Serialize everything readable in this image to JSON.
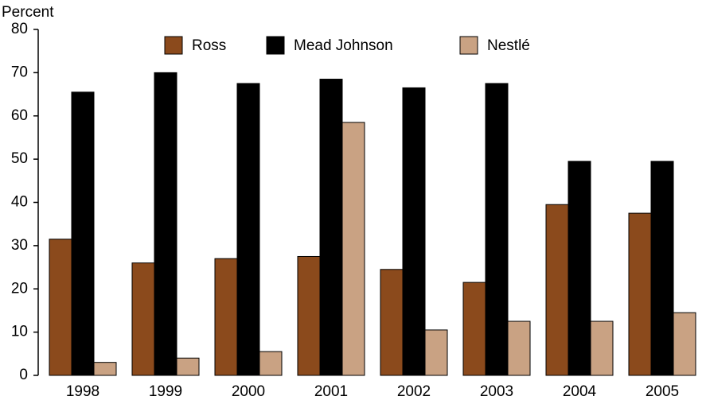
{
  "chart_data": {
    "type": "bar",
    "ylabel": "Percent",
    "categories": [
      "1998",
      "1999",
      "2000",
      "2001",
      "2002",
      "2003",
      "2004",
      "2005"
    ],
    "series": [
      {
        "name": "Ross",
        "color": "#8b4a1c",
        "values": [
          31.5,
          26,
          27,
          27.5,
          24.5,
          21.5,
          39.5,
          37.5
        ]
      },
      {
        "name": "Mead Johnson",
        "color": "#000000",
        "values": [
          65.5,
          70,
          67.5,
          68.5,
          66.5,
          67.5,
          49.5,
          49.5
        ]
      },
      {
        "name": "Nestlé",
        "color": "#c9a283",
        "values": [
          3,
          4,
          5.5,
          58.5,
          10.5,
          12.5,
          12.5,
          14.5
        ]
      }
    ],
    "ylim": [
      0,
      80
    ],
    "yticks": [
      0,
      10,
      20,
      30,
      40,
      50,
      60,
      70,
      80
    ],
    "grid": false
  }
}
